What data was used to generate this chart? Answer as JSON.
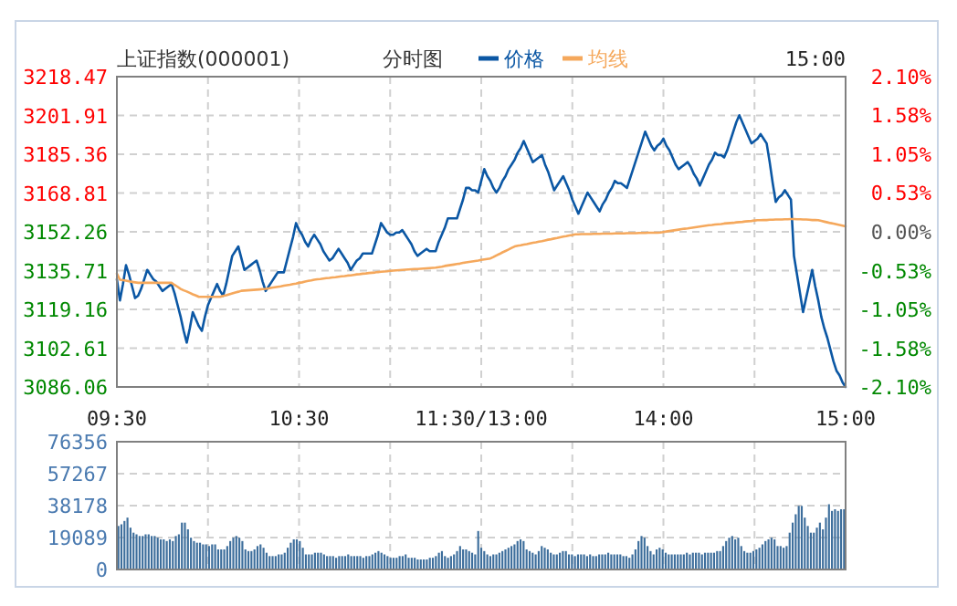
{
  "chart_data": [
    {
      "type": "line",
      "title": "上证指数(000001)",
      "subtitle": "分时图",
      "annotations": [
        "15:00"
      ],
      "legend": "top",
      "grid": true,
      "categories": [
        "09:30",
        null,
        null,
        null,
        null,
        null,
        null,
        null,
        null,
        null,
        null,
        null,
        null,
        null,
        null,
        null,
        null,
        null,
        null,
        null,
        null,
        null,
        null,
        null,
        null,
        null,
        null,
        null,
        null,
        null,
        null,
        null,
        null,
        null,
        null,
        null,
        null,
        null,
        null,
        null,
        null,
        null,
        null,
        null,
        null,
        null,
        null,
        null,
        null,
        null,
        null,
        null,
        null,
        null,
        null,
        null,
        null,
        null,
        null,
        null,
        "10:30",
        null,
        null,
        null,
        null,
        null,
        null,
        null,
        null,
        null,
        null,
        null,
        null,
        null,
        null,
        null,
        null,
        null,
        null,
        null,
        null,
        null,
        null,
        null,
        null,
        null,
        null,
        null,
        null,
        null,
        null,
        null,
        null,
        null,
        null,
        null,
        null,
        null,
        null,
        null,
        null,
        null,
        null,
        null,
        null,
        null,
        null,
        null,
        null,
        null,
        null,
        null,
        null,
        null,
        null,
        null,
        null,
        null,
        null,
        null,
        "11:30/13:00",
        null,
        null,
        null,
        null,
        null,
        null,
        null,
        null,
        null,
        null,
        null,
        null,
        null,
        null,
        null,
        null,
        null,
        null,
        null,
        null,
        null,
        null,
        null,
        null,
        null,
        null,
        null,
        null,
        null,
        null,
        null,
        null,
        null,
        null,
        null,
        null,
        null,
        null,
        null,
        null,
        null,
        null,
        null,
        null,
        null,
        null,
        null,
        null,
        null,
        null,
        null,
        null,
        null,
        null,
        null,
        null,
        null,
        null,
        null,
        "14:00",
        null,
        null,
        null,
        null,
        null,
        null,
        null,
        null,
        null,
        null,
        null,
        null,
        null,
        null,
        null,
        null,
        null,
        null,
        null,
        null,
        null,
        null,
        null,
        null,
        null,
        null,
        null,
        null,
        null,
        null,
        null,
        null,
        null,
        null,
        null,
        null,
        null,
        null,
        null,
        null,
        null,
        null,
        null,
        null,
        null,
        null,
        null,
        null,
        null,
        null,
        null,
        null,
        null,
        null,
        null,
        null,
        null,
        null,
        null,
        "15:00"
      ],
      "ylim": [
        3086.06,
        3218.47
      ],
      "yticks": [
        3086.06,
        3102.61,
        3119.16,
        3135.71,
        3152.26,
        3168.81,
        3185.36,
        3201.91,
        3218.47
      ],
      "y2lim": [
        -2.1,
        2.1
      ],
      "y2ticks": [
        {
          "value": -2.1,
          "label": "-2.10%"
        },
        {
          "value": -1.58,
          "label": "-1.58%"
        },
        {
          "value": -1.05,
          "label": "-1.05%"
        },
        {
          "value": -0.53,
          "label": "-0.53%"
        },
        {
          "value": 0,
          "label": "0.00%"
        },
        {
          "value": 0.53,
          "label": "0.53%"
        },
        {
          "value": 1.05,
          "label": "1.05%"
        },
        {
          "value": 1.58,
          "label": "1.58%"
        },
        {
          "value": 2.1,
          "label": "2.10%"
        }
      ],
      "series": [
        {
          "name": "价格",
          "color": "#0b57a4",
          "values": [
            3132,
            3123,
            3130,
            3138,
            3134,
            3129,
            3124,
            3125,
            3128,
            3132,
            3136,
            3134,
            3132,
            3131,
            3129,
            3127,
            3128,
            3129,
            3130,
            3126,
            3121,
            3116,
            3110,
            3105,
            3111,
            3118,
            3115,
            3112,
            3110,
            3116,
            3121,
            3124,
            3127,
            3130,
            3127,
            3125,
            3130,
            3136,
            3142,
            3144,
            3146,
            3141,
            3136,
            3137,
            3138,
            3139,
            3140,
            3136,
            3131,
            3127,
            3129,
            3131,
            3133,
            3135,
            3135,
            3135,
            3140,
            3145,
            3150,
            3156,
            3153,
            3151,
            3148,
            3146,
            3149,
            3151,
            3149,
            3147,
            3144,
            3142,
            3140,
            3141,
            3143,
            3145,
            3143,
            3141,
            3139,
            3136,
            3138,
            3140,
            3141,
            3143,
            3143,
            3143,
            3143,
            3147,
            3151,
            3156,
            3154,
            3152,
            3151,
            3151,
            3152,
            3152,
            3153,
            3151,
            3149,
            3147,
            3144,
            3142,
            3143,
            3144,
            3145,
            3144,
            3144,
            3144,
            3148,
            3151,
            3154,
            3158,
            3158,
            3158,
            3158,
            3162,
            3166,
            3171,
            3171,
            3170,
            3170,
            3169,
            3174,
            3179,
            3176,
            3174,
            3171,
            3169,
            3171,
            3174,
            3176,
            3179,
            3181,
            3183,
            3186,
            3188,
            3191,
            3188,
            3185,
            3182,
            3183,
            3184,
            3185,
            3181,
            3178,
            3174,
            3170,
            3172,
            3174,
            3176,
            3173,
            3170,
            3166,
            3163,
            3160,
            3163,
            3166,
            3169,
            3167,
            3165,
            3163,
            3161,
            3164,
            3166,
            3169,
            3171,
            3174,
            3173,
            3173,
            3172,
            3171,
            3175,
            3179,
            3183,
            3187,
            3191,
            3195,
            3192,
            3189,
            3187,
            3189,
            3190,
            3192,
            3189,
            3187,
            3184,
            3181,
            3179,
            3180,
            3181,
            3182,
            3180,
            3177,
            3175,
            3172,
            3175,
            3178,
            3181,
            3183,
            3186,
            3185,
            3185,
            3184,
            3187,
            3191,
            3195,
            3199,
            3202,
            3199,
            3196,
            3193,
            3190,
            3191,
            3192,
            3194,
            3192,
            3190,
            3182,
            3173,
            3165,
            3167,
            3168,
            3170,
            3168,
            3166,
            3142,
            3134,
            3126,
            3118,
            3124,
            3130,
            3136,
            3129,
            3123,
            3116,
            3111,
            3107,
            3102,
            3097,
            3093,
            3091,
            3088,
            3086.1
          ]
        },
        {
          "name": "均线",
          "color": "#f5a85c",
          "values": [
            3134.4,
            3131.8,
            3131.6,
            3131.4,
            3131.1,
            3130.9,
            3130.7,
            3130.5,
            3130.5,
            3130.5,
            3130.5,
            3130.5,
            3130.5,
            3130.5,
            3130.5,
            3130.5,
            3130.5,
            3130.5,
            3130.5,
            3129.6,
            3128.8,
            3127.9,
            3127.3,
            3126.8,
            3126.2,
            3125.6,
            3125.1,
            3124.5,
            3124.5,
            3124.5,
            3124.5,
            3124.5,
            3124.5,
            3124.5,
            3124.5,
            3124.9,
            3125.2,
            3125.6,
            3126.0,
            3126.4,
            3126.7,
            3127.1,
            3127.2,
            3127.3,
            3127.4,
            3127.5,
            3127.6,
            3127.7,
            3127.8,
            3127.9,
            3128.1,
            3128.4,
            3128.6,
            3128.8,
            3129.0,
            3129.3,
            3129.5,
            3129.7,
            3130.0,
            3130.2,
            3130.5,
            3130.7,
            3131.0,
            3131.3,
            3131.5,
            3131.8,
            3132.0,
            3132.1,
            3132.3,
            3132.5,
            3132.6,
            3132.8,
            3132.9,
            3133.1,
            3133.3,
            3133.4,
            3133.6,
            3133.7,
            3133.9,
            3134.1,
            3134.2,
            3134.4,
            3134.5,
            3134.7,
            3134.8,
            3134.9,
            3135.1,
            3135.2,
            3135.3,
            3135.4,
            3135.6,
            3135.7,
            3135.8,
            3135.9,
            3136.0,
            3136.1,
            3136.2,
            3136.3,
            3136.4,
            3136.4,
            3136.5,
            3136.6,
            3136.7,
            3136.8,
            3136.9,
            3137.0,
            3137.2,
            3137.4,
            3137.7,
            3137.9,
            3138.1,
            3138.3,
            3138.5,
            3138.7,
            3139.0,
            3139.2,
            3139.4,
            3139.6,
            3139.8,
            3140.0,
            3140.3,
            3140.5,
            3140.7,
            3140.9,
            3141.5,
            3142.2,
            3142.8,
            3143.5,
            3144.1,
            3144.7,
            3145.4,
            3146.0,
            3146.3,
            3146.5,
            3146.8,
            3147.0,
            3147.3,
            3147.6,
            3147.8,
            3148.1,
            3148.3,
            3148.6,
            3148.9,
            3149.1,
            3149.4,
            3149.6,
            3149.9,
            3150.2,
            3150.4,
            3150.7,
            3150.9,
            3151.2,
            3151.2,
            3151.3,
            3151.3,
            3151.3,
            3151.3,
            3151.4,
            3151.4,
            3151.4,
            3151.5,
            3151.5,
            3151.5,
            3151.5,
            3151.6,
            3151.6,
            3151.6,
            3151.6,
            3151.7,
            3151.7,
            3151.7,
            3151.7,
            3151.8,
            3151.8,
            3151.8,
            3151.9,
            3151.9,
            3151.9,
            3151.9,
            3152.0,
            3152.2,
            3152.4,
            3152.6,
            3152.8,
            3153.0,
            3153.2,
            3153.4,
            3153.6,
            3153.7,
            3153.9,
            3154.1,
            3154.3,
            3154.5,
            3154.7,
            3154.9,
            3155.1,
            3155.2,
            3155.4,
            3155.5,
            3155.6,
            3155.8,
            3155.9,
            3156.0,
            3156.1,
            3156.3,
            3156.4,
            3156.5,
            3156.7,
            3156.8,
            3156.9,
            3157.1,
            3157.2,
            3157.2,
            3157.3,
            3157.3,
            3157.4,
            3157.4,
            3157.5,
            3157.5,
            3157.5,
            3157.6,
            3157.6,
            3157.7,
            3157.7,
            3157.6,
            3157.6,
            3157.5,
            3157.5,
            3157.4,
            3157.3,
            3157.3,
            3157.2,
            3156.9,
            3156.6,
            3156.3,
            3156.0,
            3155.8,
            3155.5,
            3155.2,
            3154.9,
            3154.6
          ]
        }
      ]
    },
    {
      "type": "bar",
      "grid": true,
      "tick_labels": "y",
      "color": "#3d6e9c",
      "categories": [
        null,
        null,
        null,
        null,
        null,
        null,
        null,
        null,
        null,
        null,
        null,
        null,
        null,
        null,
        null,
        null,
        null,
        null,
        null,
        null,
        null,
        null,
        null,
        null,
        null,
        null,
        null,
        null,
        null,
        null,
        null,
        null,
        null,
        null,
        null,
        null,
        null,
        null,
        null,
        null,
        null,
        null,
        null,
        null,
        null,
        null,
        null,
        null,
        null,
        null,
        null,
        null,
        null,
        null,
        null,
        null,
        null,
        null,
        null,
        null,
        null,
        null,
        null,
        null,
        null,
        null,
        null,
        null,
        null,
        null,
        null,
        null,
        null,
        null,
        null,
        null,
        null,
        null,
        null,
        null,
        null,
        null,
        null,
        null,
        null,
        null,
        null,
        null,
        null,
        null,
        null,
        null,
        null,
        null,
        null,
        null,
        null,
        null,
        null,
        null,
        null,
        null,
        null,
        null,
        null,
        null,
        null,
        null,
        null,
        null,
        null,
        null,
        null,
        null,
        null,
        null,
        null,
        null,
        null,
        null,
        null,
        null,
        null,
        null,
        null,
        null,
        null,
        null,
        null,
        null,
        null,
        null,
        null,
        null,
        null,
        null,
        null,
        null,
        null,
        null,
        null,
        null,
        null,
        null,
        null,
        null,
        null,
        null,
        null,
        null,
        null,
        null,
        null,
        null,
        null,
        null,
        null,
        null,
        null,
        null,
        null,
        null,
        null,
        null,
        null,
        null,
        null,
        null,
        null,
        null,
        null,
        null,
        null,
        null,
        null,
        null,
        null,
        null,
        null,
        null,
        null,
        null,
        null,
        null,
        null,
        null,
        null,
        null,
        null,
        null,
        null,
        null,
        null,
        null,
        null,
        null,
        null,
        null,
        null,
        null,
        null,
        null,
        null,
        null,
        null,
        null,
        null,
        null,
        null,
        null,
        null,
        null,
        null,
        null,
        null,
        null,
        null,
        null,
        null,
        null,
        null,
        null,
        null,
        null,
        null,
        null,
        null,
        null,
        null,
        null,
        null,
        null,
        null,
        null,
        null,
        null,
        null,
        null,
        null,
        null,
        null
      ],
      "ylim": [
        0,
        76356
      ],
      "yticks": [
        0,
        19089,
        38178,
        57267,
        76356
      ],
      "values": [
        26000,
        27000,
        29000,
        31000,
        25000,
        22000,
        21000,
        20000,
        20000,
        21000,
        21000,
        20000,
        20000,
        19000,
        18000,
        18000,
        17000,
        18000,
        17000,
        20000,
        21000,
        28000,
        28000,
        24000,
        19000,
        17000,
        16000,
        16000,
        15000,
        15000,
        14000,
        15000,
        15000,
        12000,
        12000,
        12000,
        14000,
        17000,
        19000,
        20000,
        19000,
        17000,
        12000,
        11000,
        11000,
        12000,
        14000,
        15000,
        13000,
        10000,
        8000,
        8000,
        8000,
        9000,
        9000,
        10000,
        13000,
        16000,
        18000,
        18000,
        17000,
        13000,
        9000,
        9000,
        9000,
        10000,
        10000,
        10000,
        9000,
        8000,
        8000,
        8000,
        7000,
        8000,
        8000,
        8000,
        9000,
        8000,
        8000,
        8000,
        8000,
        7000,
        8000,
        8000,
        9000,
        10000,
        11000,
        10000,
        9000,
        8000,
        7000,
        7000,
        7000,
        8000,
        8000,
        9000,
        7000,
        7000,
        7000,
        6000,
        6000,
        6000,
        6000,
        7000,
        7000,
        8000,
        10000,
        11000,
        8000,
        7000,
        8000,
        9000,
        11000,
        14000,
        12000,
        12000,
        11000,
        10000,
        9000,
        23000,
        13000,
        11000,
        9000,
        8000,
        9000,
        9000,
        10000,
        11000,
        12000,
        13000,
        14000,
        15000,
        17000,
        18000,
        17000,
        12000,
        11000,
        10000,
        9000,
        11000,
        14000,
        13000,
        12000,
        10000,
        9000,
        9000,
        10000,
        11000,
        11000,
        9000,
        9000,
        8000,
        9000,
        9000,
        9000,
        8000,
        9000,
        8000,
        8000,
        9000,
        9000,
        9000,
        10000,
        9000,
        9000,
        9000,
        9000,
        8000,
        8000,
        7000,
        9000,
        12000,
        17000,
        20000,
        19000,
        14000,
        11000,
        9000,
        12000,
        13000,
        12000,
        10000,
        9000,
        9000,
        9000,
        9000,
        9000,
        9000,
        10000,
        9000,
        10000,
        10000,
        10000,
        9000,
        10000,
        10000,
        10000,
        10000,
        11000,
        11000,
        14000,
        17000,
        19000,
        20000,
        18000,
        19000,
        14000,
        11000,
        10000,
        10000,
        11000,
        12000,
        13000,
        15000,
        17000,
        18000,
        19000,
        18000,
        14000,
        14000,
        13000,
        14000,
        22000,
        28000,
        33000,
        38000,
        38000,
        31000,
        26000,
        22000,
        22000,
        25000,
        28000,
        24000,
        31000,
        39000,
        35000,
        36000,
        35000,
        36000,
        36000
      ]
    }
  ]
}
